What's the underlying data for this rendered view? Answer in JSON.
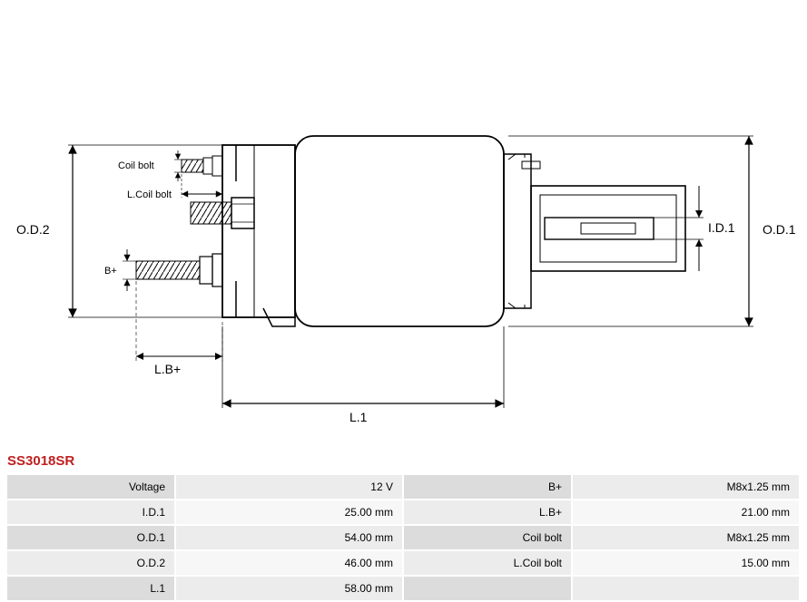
{
  "part_number": "SS3018SR",
  "part_number_color": "#c02020",
  "diagram": {
    "labels": {
      "od1": "O.D.1",
      "od2": "O.D.2",
      "id1": "I.D.1",
      "l1": "L.1",
      "lb_plus": "L.B+",
      "b_plus": "B+",
      "coil_bolt": "Coil bolt",
      "l_coil_bolt": "L.Coil bolt"
    },
    "stroke": "#000000",
    "stroke_width": 1.5,
    "dash": "4,3"
  },
  "specs": {
    "rows": [
      {
        "l_label": "Voltage",
        "l_value": "12 V",
        "r_label": "B+",
        "r_value": "M8x1.25 mm"
      },
      {
        "l_label": "I.D.1",
        "l_value": "25.00 mm",
        "r_label": "L.B+",
        "r_value": "21.00 mm"
      },
      {
        "l_label": "O.D.1",
        "l_value": "54.00 mm",
        "r_label": "Coil bolt",
        "r_value": "M8x1.25 mm"
      },
      {
        "l_label": "O.D.2",
        "l_value": "46.00 mm",
        "r_label": "L.Coil bolt",
        "r_value": "15.00 mm"
      },
      {
        "l_label": "L.1",
        "l_value": "58.00 mm",
        "r_label": "",
        "r_value": ""
      }
    ],
    "label_bg_odd": "#dcdcdc",
    "label_bg_even": "#ececec",
    "value_bg_odd": "#ececec",
    "value_bg_even": "#f7f7f7",
    "font_size": 12
  }
}
